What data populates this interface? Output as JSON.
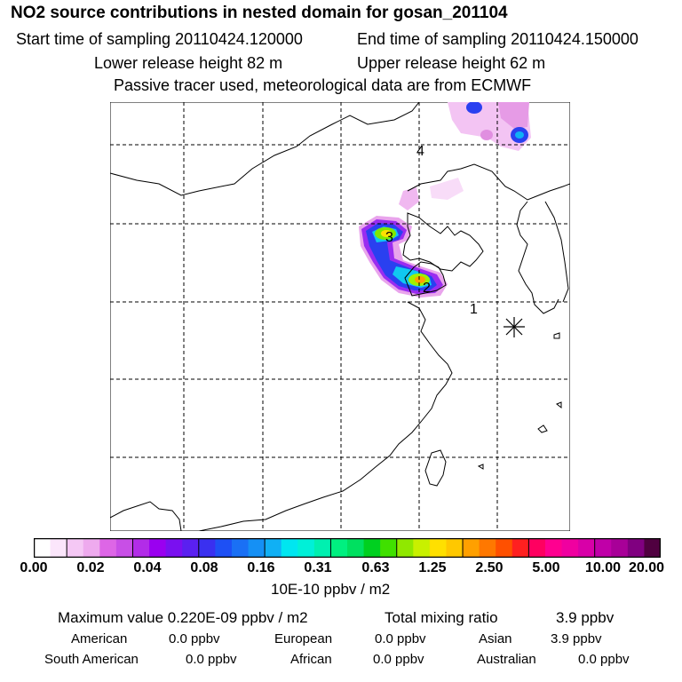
{
  "header": {
    "title": "NO2 source contributions in nested domain for gosan_201104",
    "start_time": "Start time of sampling 20110424.120000",
    "end_time": "End time of sampling 20110424.150000",
    "lower_height": "Lower release height   82 m",
    "upper_height": "Upper release height   62 m",
    "tracer_note": "Passive tracer used, meteorological data are from ECMWF"
  },
  "map": {
    "trajectory_labels": [
      "1",
      "2",
      "3",
      "4"
    ],
    "receptor_marker": "asterisk-icon",
    "ocean_color": "#ffffff",
    "grid_style": "dashed"
  },
  "colorbar": {
    "colors": [
      "#ffffff",
      "#fbe6fb",
      "#f5c8f5",
      "#eeaaee",
      "#dd66e6",
      "#c84fe6",
      "#b22ce8",
      "#9a00f0",
      "#7a10f0",
      "#5a20f0",
      "#3a30f0",
      "#1e50f5",
      "#1a70f5",
      "#1590f5",
      "#10b0f5",
      "#00e6f0",
      "#00f0d8",
      "#00f0b0",
      "#00f080",
      "#00e060",
      "#00d020",
      "#40e000",
      "#90e800",
      "#c8f000",
      "#ffe000",
      "#ffc800",
      "#ffa000",
      "#ff7800",
      "#ff5000",
      "#ff2020",
      "#ff0060",
      "#ff0090",
      "#f000a0",
      "#d800a8",
      "#c000a8",
      "#a80098",
      "#800080",
      "#500040"
    ],
    "group_boundaries": [
      0,
      2,
      6,
      10,
      14,
      18,
      22,
      26,
      30,
      34,
      38
    ],
    "tick_labels": [
      "0.00",
      "0.02",
      "0.04",
      "0.08",
      "0.16",
      "0.31",
      "0.63",
      "1.25",
      "2.50",
      "5.00",
      "10.00",
      "20.00"
    ],
    "unit": "10E-10 ppbv / m2"
  },
  "summary": {
    "max_value": "Maximum value  0.220E-09 ppbv / m2",
    "total_label": "Total mixing ratio",
    "total_value": "3.9 ppbv",
    "regions": [
      {
        "name": "American",
        "value": "0.0 ppbv"
      },
      {
        "name": "European",
        "value": "0.0 ppbv"
      },
      {
        "name": "Asian",
        "value": "3.9 ppbv"
      },
      {
        "name": "South American",
        "value": "0.0 ppbv"
      },
      {
        "name": "African",
        "value": "0.0 ppbv"
      },
      {
        "name": "Australian",
        "value": "0.0 ppbv"
      }
    ]
  }
}
